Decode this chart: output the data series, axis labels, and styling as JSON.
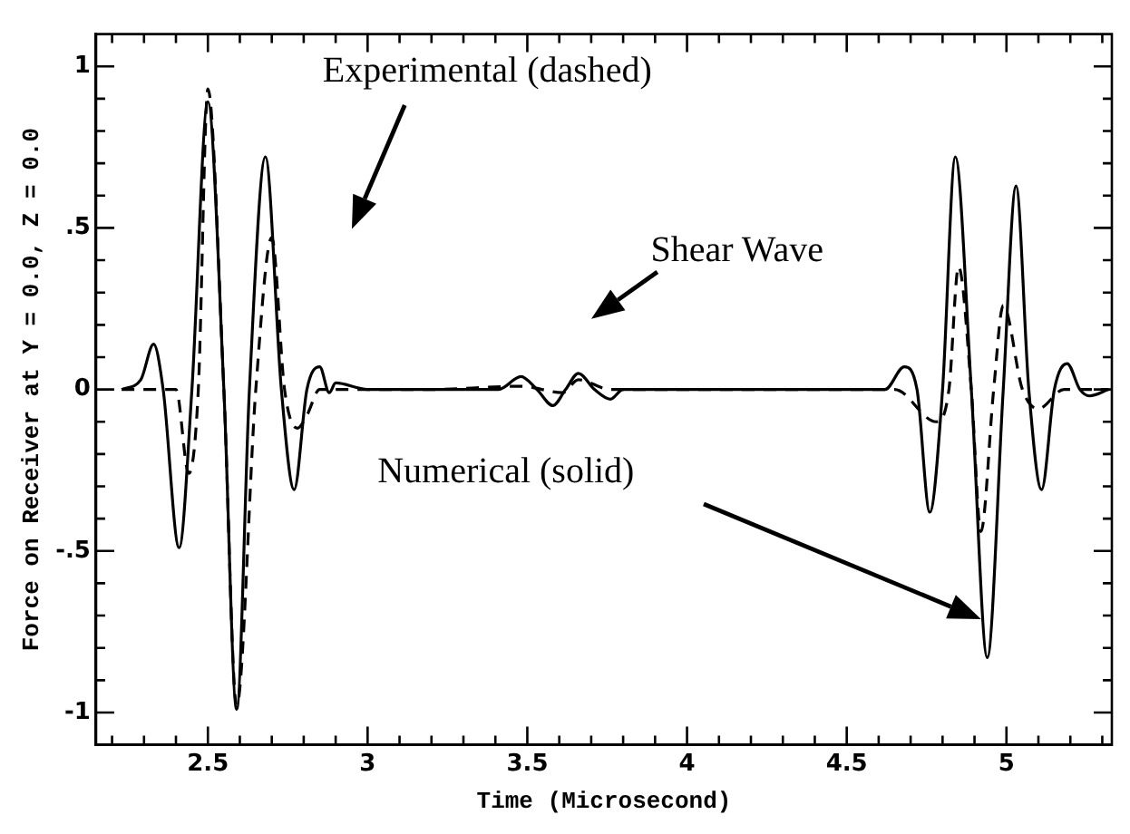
{
  "chart_data": {
    "type": "line",
    "xlabel": "Time (Microsecond)",
    "ylabel": "Force on Receiver at Y = 0.0, Z = 0.0",
    "xlim": [
      2.15,
      5.33
    ],
    "ylim": [
      -1.1,
      1.1
    ],
    "xticks": [
      {
        "value": 2.2,
        "label": null
      },
      {
        "value": 2.3,
        "label": null
      },
      {
        "value": 2.4,
        "label": null
      },
      2.5,
      {
        "value": 2.6,
        "label": null
      },
      {
        "value": 2.7,
        "label": null
      },
      {
        "value": 2.8,
        "label": null
      },
      {
        "value": 2.9,
        "label": null
      },
      3,
      {
        "value": 3.1,
        "label": null
      },
      {
        "value": 3.2,
        "label": null
      },
      {
        "value": 3.3,
        "label": null
      },
      {
        "value": 3.4,
        "label": null
      },
      3.5,
      {
        "value": 3.6,
        "label": null
      },
      {
        "value": 3.7,
        "label": null
      },
      {
        "value": 3.8,
        "label": null
      },
      {
        "value": 3.9,
        "label": null
      },
      4,
      {
        "value": 4.1,
        "label": null
      },
      {
        "value": 4.2,
        "label": null
      },
      {
        "value": 4.3,
        "label": null
      },
      {
        "value": 4.4,
        "label": null
      },
      4.5,
      {
        "value": 4.6,
        "label": null
      },
      {
        "value": 4.7,
        "label": null
      },
      {
        "value": 4.8,
        "label": null
      },
      {
        "value": 4.9,
        "label": null
      },
      5,
      {
        "value": 5.1,
        "label": null
      },
      {
        "value": 5.2,
        "label": null
      },
      {
        "value": 5.3,
        "label": null
      }
    ],
    "yticks": [
      -1,
      {
        "value": -0.9,
        "label": null
      },
      {
        "value": -0.8,
        "label": null
      },
      {
        "value": -0.7,
        "label": null
      },
      {
        "value": -0.6,
        "label": null
      },
      {
        "value": -0.5,
        "label": "-.5"
      },
      {
        "value": -0.4,
        "label": null
      },
      {
        "value": -0.3,
        "label": null
      },
      {
        "value": -0.2,
        "label": null
      },
      {
        "value": -0.1,
        "label": null
      },
      0,
      {
        "value": 0.1,
        "label": null
      },
      {
        "value": 0.2,
        "label": null
      },
      {
        "value": 0.3,
        "label": null
      },
      {
        "value": 0.4,
        "label": null
      },
      {
        "value": 0.5,
        "label": ".5"
      },
      {
        "value": 0.6,
        "label": null
      },
      {
        "value": 0.7,
        "label": null
      },
      {
        "value": 0.8,
        "label": null
      },
      {
        "value": 0.9,
        "label": null
      },
      1
    ],
    "legend": false,
    "marker": "none",
    "series": [
      {
        "color": "#000000",
        "line_style": "solid",
        "x": [
          2.23,
          2.29,
          2.33,
          2.36,
          2.41,
          2.45,
          2.5,
          2.55,
          2.59,
          2.63,
          2.68,
          2.73,
          2.77,
          2.81,
          2.85,
          2.88,
          2.9,
          3.0,
          3.2,
          3.41,
          3.48,
          3.53,
          3.58,
          3.62,
          3.66,
          3.71,
          3.76,
          3.8,
          4.0,
          4.3,
          4.62,
          4.68,
          4.72,
          4.76,
          4.8,
          4.84,
          4.89,
          4.94,
          4.99,
          5.03,
          5.07,
          5.11,
          5.15,
          5.19,
          5.23,
          5.26,
          5.32
        ],
        "values": [
          0,
          0.03,
          0.14,
          0,
          -0.49,
          0,
          0.89,
          0,
          -0.99,
          0,
          0.72,
          0,
          -0.31,
          0,
          0.07,
          -0.01,
          0.02,
          0,
          0,
          0,
          0.04,
          0,
          -0.05,
          0,
          0.05,
          0,
          -0.03,
          0,
          0,
          0,
          0,
          0.07,
          0,
          -0.38,
          0,
          0.72,
          0,
          -0.83,
          0,
          0.63,
          0,
          -0.31,
          0,
          0.08,
          0,
          -0.02,
          0
        ]
      },
      {
        "color": "#000000",
        "line_style": "dashed",
        "x": [
          2.23,
          2.36,
          2.4,
          2.44,
          2.47,
          2.5,
          2.55,
          2.59,
          2.65,
          2.7,
          2.74,
          2.78,
          2.81,
          2.85,
          3.0,
          3.2,
          3.48,
          3.61,
          3.66,
          3.76,
          4.0,
          4.3,
          4.65,
          4.78,
          4.82,
          4.85,
          4.89,
          4.92,
          4.96,
          4.99,
          5.05,
          5.1,
          5.18,
          5.32
        ],
        "values": [
          0,
          0,
          0,
          -0.26,
          0,
          0.93,
          0,
          -0.98,
          0,
          0.47,
          0,
          -0.12,
          -0.08,
          0,
          0,
          0,
          0.01,
          -0.01,
          0.03,
          0,
          0,
          0,
          0,
          -0.1,
          0,
          0.38,
          0,
          -0.44,
          0,
          0.26,
          0,
          -0.06,
          0,
          0
        ]
      }
    ],
    "annotations": [
      "Experimental (dashed)",
      "Shear Wave",
      "Numerical (solid)"
    ]
  }
}
